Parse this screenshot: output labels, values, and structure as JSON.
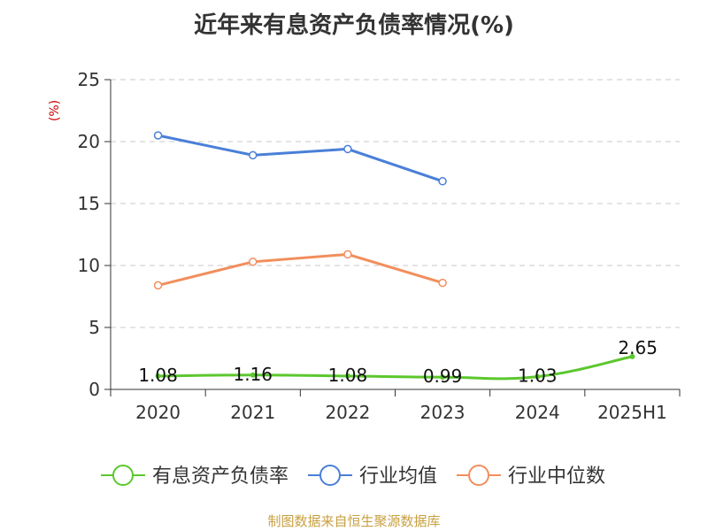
{
  "chart_data": {
    "type": "line",
    "title": "近年来有息资产负债率情况(%)",
    "ylabel": "(%)",
    "xlabel": "",
    "ylim": [
      0,
      25
    ],
    "yticks": [
      0,
      5,
      10,
      15,
      20,
      25
    ],
    "categories": [
      "2020",
      "2021",
      "2022",
      "2023",
      "2024",
      "2025H1"
    ],
    "grid": true,
    "legend_position": "bottom",
    "series": [
      {
        "name": "有息资产负债率",
        "color": "#5cc72e",
        "values": [
          1.08,
          1.16,
          1.08,
          0.99,
          1.03,
          2.65
        ],
        "labels": [
          "1.08",
          "1.16",
          "1.08",
          "0.99",
          "1.03",
          "2.65"
        ]
      },
      {
        "name": "行业均值",
        "color": "#4a7fd8",
        "values": [
          20.5,
          18.9,
          19.4,
          16.8,
          null,
          null
        ]
      },
      {
        "name": "行业中位数",
        "color": "#f28e5c",
        "values": [
          8.4,
          10.3,
          10.9,
          8.6,
          null,
          null
        ]
      }
    ]
  },
  "source": "制图数据来自恒生聚源数据库"
}
